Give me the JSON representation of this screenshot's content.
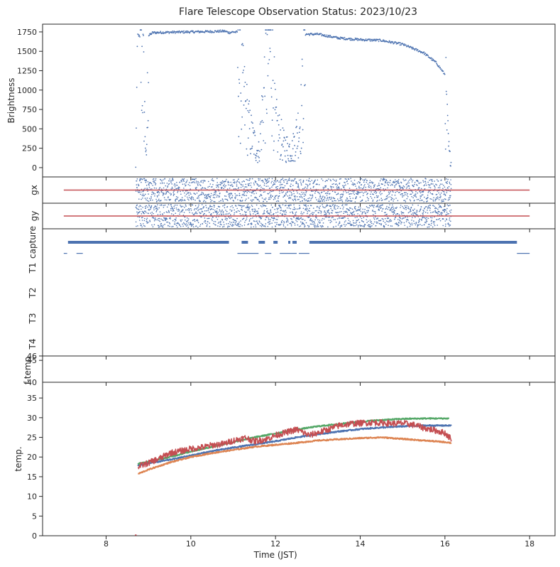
{
  "title": "Flare Telescope Observation Status: 2023/10/23",
  "colors": {
    "blue": "#4c72b0",
    "orange": "#dd8452",
    "green": "#55a868",
    "red": "#c44e52",
    "axis": "#262626"
  },
  "chart_data": [
    {
      "id": "brightness",
      "type": "scatter",
      "ylabel": "Brightness",
      "ylim": [
        -120,
        1850
      ],
      "yticks": [
        0,
        250,
        500,
        750,
        1000,
        1250,
        1500,
        1750
      ],
      "profile": {
        "x": [
          8.7,
          8.74,
          8.78,
          8.82,
          8.86,
          8.9,
          8.95,
          9.0,
          9.1,
          9.5,
          10.0,
          10.5,
          10.8,
          10.9,
          11.0,
          11.1,
          11.2,
          11.4,
          11.6,
          11.8,
          11.9,
          12.0,
          12.2,
          12.4,
          12.6,
          12.65,
          12.7,
          13.0,
          13.5,
          14.0,
          14.5,
          15.0,
          15.5,
          15.8,
          16.0,
          16.05,
          16.1,
          16.15
        ],
        "y": [
          0,
          1720,
          1700,
          1650,
          1500,
          900,
          50,
          1700,
          1740,
          1745,
          1750,
          1755,
          1760,
          1740,
          1750,
          1745,
          1100,
          500,
          200,
          1500,
          1700,
          600,
          300,
          250,
          700,
          1100,
          1720,
          1720,
          1670,
          1650,
          1640,
          1590,
          1480,
          1350,
          1200,
          600,
          200,
          60
        ]
      }
    },
    {
      "id": "gx",
      "type": "scatter",
      "ylabel": "gx",
      "ylim": [
        -1,
        1
      ],
      "line_x": [
        7,
        18
      ],
      "line_y": 0
    },
    {
      "id": "gy",
      "type": "scatter",
      "ylabel": "gy",
      "ylim": [
        -1,
        1
      ],
      "line_x": [
        7,
        18
      ],
      "line_y": 0
    },
    {
      "id": "status",
      "type": "bar",
      "ylabels": [
        "capture",
        "T1",
        "T2",
        "T3",
        "T4"
      ],
      "capture_segments": [
        [
          7.1,
          10.9
        ],
        [
          11.2,
          11.35
        ],
        [
          11.6,
          11.75
        ],
        [
          11.95,
          12.05
        ],
        [
          12.3,
          12.35
        ],
        [
          12.4,
          12.5
        ],
        [
          12.8,
          17.7
        ]
      ],
      "t1_segments": [
        [
          7.0,
          7.08
        ],
        [
          7.3,
          7.45
        ],
        [
          11.1,
          11.6
        ],
        [
          11.75,
          11.9
        ],
        [
          12.1,
          12.5
        ],
        [
          12.55,
          12.8
        ],
        [
          17.7,
          18.0
        ]
      ]
    },
    {
      "id": "ftemp",
      "type": "line",
      "ylabel": "f-temp",
      "ylim": [
        40,
        46
      ],
      "yticks": [
        45,
        46
      ]
    },
    {
      "id": "temp",
      "type": "line",
      "ylabel": "temp.",
      "xlabel": "Time (JST)",
      "ylim": [
        0,
        39
      ],
      "yticks": [
        0,
        5,
        10,
        15,
        20,
        25,
        30,
        35
      ],
      "series": [
        {
          "color": "green",
          "x": [
            8.75,
            9.0,
            9.5,
            10.0,
            10.5,
            11.0,
            11.5,
            12.0,
            12.5,
            13.0,
            13.5,
            14.0,
            14.5,
            15.0,
            15.5,
            16.0,
            16.1
          ],
          "y": [
            18.3,
            18.8,
            20.0,
            21.4,
            22.6,
            23.8,
            25.0,
            26.0,
            27.0,
            27.8,
            28.4,
            29.0,
            29.4,
            29.7,
            29.8,
            29.8,
            29.8
          ]
        },
        {
          "color": "blue",
          "x": [
            8.75,
            9.0,
            9.5,
            10.0,
            10.5,
            11.0,
            11.5,
            12.0,
            12.5,
            13.0,
            13.5,
            14.0,
            14.5,
            15.0,
            15.5,
            16.0,
            16.15
          ],
          "y": [
            17.8,
            18.4,
            19.3,
            20.4,
            21.5,
            22.4,
            23.2,
            24.0,
            25.0,
            25.8,
            26.5,
            27.1,
            27.5,
            27.8,
            28.0,
            28.0,
            28.0
          ]
        },
        {
          "color": "orange",
          "x": [
            8.75,
            9.0,
            9.5,
            10.0,
            10.5,
            11.0,
            11.5,
            12.0,
            12.5,
            13.0,
            13.5,
            14.0,
            14.5,
            15.0,
            15.5,
            16.0,
            16.15
          ],
          "y": [
            15.7,
            16.8,
            18.6,
            20.0,
            21.0,
            21.8,
            22.6,
            23.1,
            23.6,
            24.2,
            24.5,
            24.8,
            25.0,
            24.6,
            24.2,
            23.8,
            23.6
          ]
        },
        {
          "color": "red",
          "x": [
            8.75,
            9.0,
            9.3,
            9.5,
            9.8,
            10.0,
            10.3,
            10.5,
            10.8,
            11.0,
            11.3,
            11.5,
            11.8,
            12.0,
            12.3,
            12.5,
            12.8,
            13.0,
            13.3,
            13.5,
            13.8,
            14.0,
            14.3,
            14.5,
            14.8,
            15.0,
            15.3,
            15.5,
            15.8,
            16.0,
            16.15
          ],
          "y": [
            17.5,
            18.5,
            19.8,
            21.0,
            21.6,
            22.1,
            22.5,
            23.0,
            23.4,
            24.2,
            24.9,
            24.0,
            24.6,
            25.5,
            26.4,
            27.0,
            25.5,
            26.2,
            27.2,
            28.0,
            28.5,
            28.6,
            28.8,
            28.7,
            28.5,
            28.6,
            28.1,
            27.4,
            26.7,
            26.1,
            24.6
          ]
        }
      ]
    }
  ],
  "xaxis": {
    "xlim": [
      6.5,
      18.6
    ],
    "xticks": [
      8,
      10,
      12,
      14,
      16,
      18
    ],
    "xlabel": "Time (JST)"
  }
}
